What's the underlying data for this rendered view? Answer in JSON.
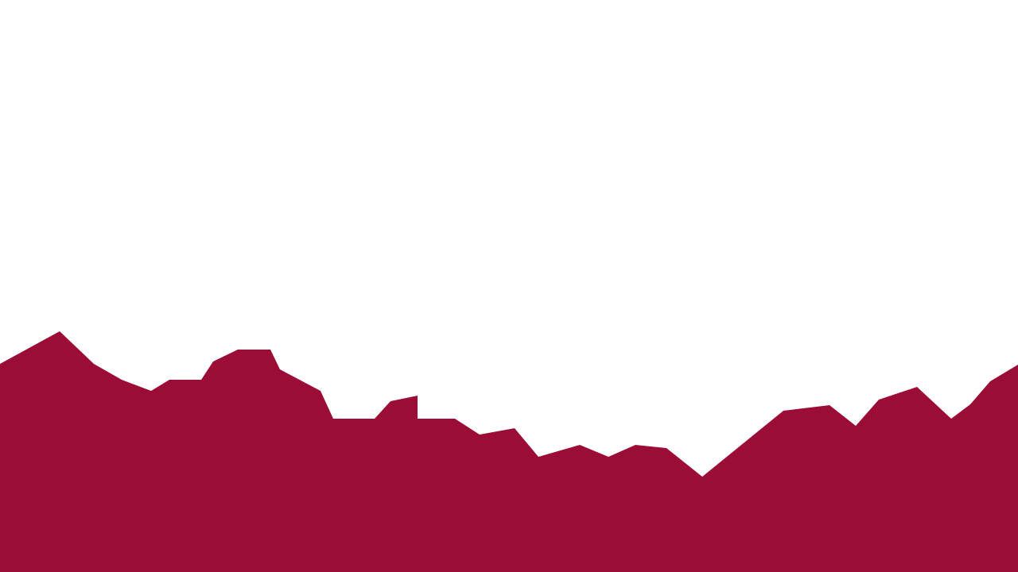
{
  "scene": {
    "background_color": "#ffffff",
    "shape_color": "#9b0d36"
  }
}
